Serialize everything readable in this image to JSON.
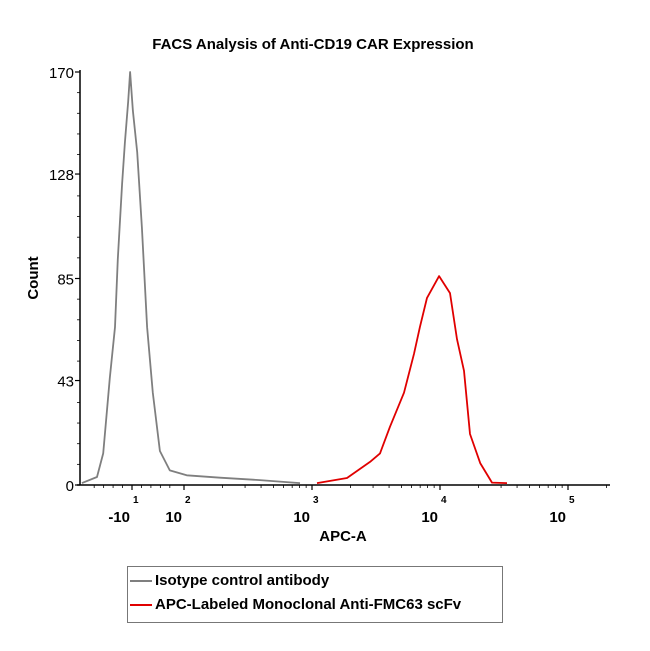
{
  "chart_data": {
    "type": "line",
    "title": "FACS Analysis of Anti-CD19 CAR Expression",
    "xlabel": "APC-A",
    "ylabel": "Count",
    "x_scale": "biexponential",
    "ylim": [
      0,
      170
    ],
    "y_ticks": [
      "0",
      "43",
      "85",
      "128",
      "170"
    ],
    "x_ticks": [
      {
        "base": "-10",
        "exp": "1",
        "value": -10
      },
      {
        "base": "10",
        "exp": "2",
        "value": 100
      },
      {
        "base": "10",
        "exp": "3",
        "value": 1000
      },
      {
        "base": "10",
        "exp": "4",
        "value": 10000
      },
      {
        "base": "10",
        "exp": "5",
        "value": 100000
      }
    ],
    "grid": false,
    "legend_position": "bottom",
    "series": [
      {
        "name": "Isotype control antibody",
        "color": "#7f7f7f",
        "x": [
          -116,
          -84,
          -71,
          -57,
          -46,
          -40,
          -31,
          -25,
          -18,
          -14,
          -8,
          1,
          11,
          22,
          34,
          49,
          70,
          105,
          191,
          392,
          806
        ],
        "y": [
          0.8,
          3.3,
          13,
          44,
          65,
          93,
          124,
          141,
          158,
          170,
          154,
          137,
          106,
          65,
          38,
          14,
          6,
          4,
          3,
          2,
          0.8
        ]
      },
      {
        "name": "APC-Labeled Monoclonal Anti-FMC63 scFv",
        "color": "#e00000",
        "x": [
          1094,
          1876,
          2840,
          3400,
          4070,
          5230,
          6260,
          6970,
          7920,
          9840,
          11970,
          13580,
          15410,
          17140,
          20600,
          25480,
          33400
        ],
        "y": [
          0.8,
          2.9,
          9.5,
          13,
          24,
          38,
          54,
          65,
          77,
          86,
          79,
          60,
          47,
          21,
          9,
          1,
          0.8
        ]
      }
    ]
  }
}
